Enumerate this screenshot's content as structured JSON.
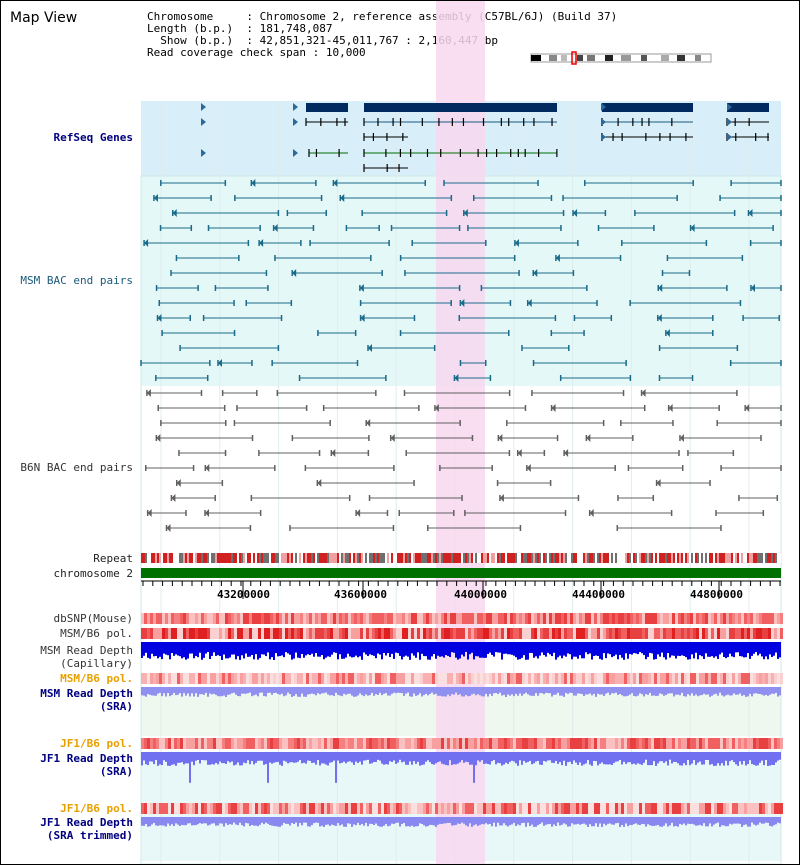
{
  "title": "Map View",
  "info": {
    "chromosome_label": "Chromosome",
    "chromosome_value": "Chromosome 2, reference assembly (C57BL/6J) (Build 37)",
    "length_label": "Length (b.p.)",
    "length_value": "181,748,087",
    "show_label": "Show (b.p.)",
    "show_value": "42,851,321-45,011,767 : 2,160,447 bp",
    "coverage_label": "Read coverage check span",
    "coverage_value": "10,000"
  },
  "tracks": {
    "refseq": "RefSeq Genes",
    "msm_bac": "MSM BAC end pairs",
    "b6n_bac": "B6N BAC end pairs",
    "repeat": "Repeat",
    "chromosome": "chromosome 2",
    "dbsnp": "dbSNP(Mouse)",
    "msm_b6_pol": "MSM/B6 pol.",
    "msm_depth_cap_1": "MSM Read Depth",
    "msm_depth_cap_2": "(Capillary)",
    "msm_b6_pol_2": "MSM/B6 pol.",
    "msm_depth_sra_1": "MSM Read Depth",
    "msm_depth_sra_2": "(SRA)",
    "jf1_b6_pol": "JF1/B6 pol.",
    "jf1_depth_sra_1": "JF1 Read Depth",
    "jf1_depth_sra_2": "(SRA)",
    "jf1_b6_pol_2": "JF1/B6 pol.",
    "jf1_depth_trim_1": "JF1 Read Depth",
    "jf1_depth_trim_2": "(SRA trimmed)"
  },
  "axis_ticks": [
    "43200000",
    "43600000",
    "44000000",
    "44400000",
    "44800000"
  ],
  "colors": {
    "highlight": "#f8d8f0",
    "refseq_bg": "#d8eef8",
    "msm_bg": "#e4f8f8",
    "gene": "#002a60",
    "msm_pair": "#1a6a8a",
    "b6n_pair": "#606060",
    "chromosome_bar": "#007000"
  }
}
